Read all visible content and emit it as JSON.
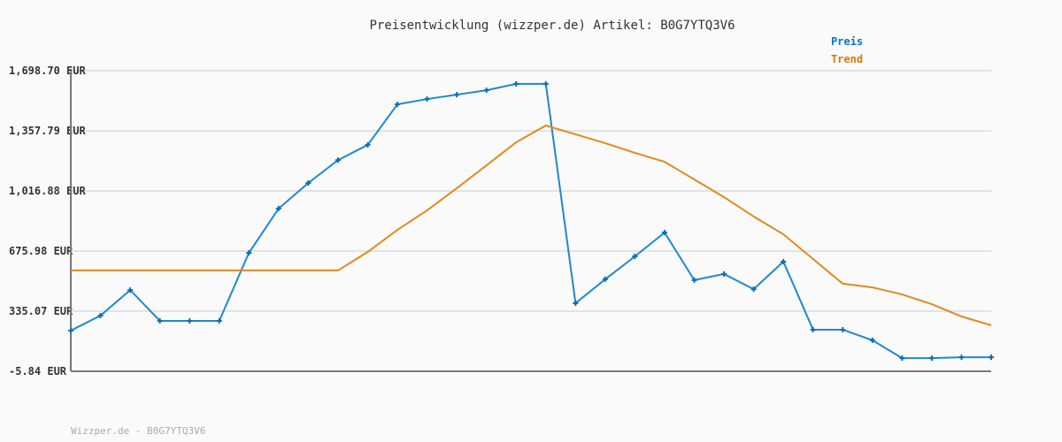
{
  "chart_data": {
    "type": "line",
    "title": "Preisentwicklung (wizzper.de) Artikel: B0G7YTQ3V6",
    "xlabel": "",
    "ylabel": "",
    "ylim": [
      -5.84,
      1698.7
    ],
    "yticks": [
      "-5.84 EUR",
      "335.07 EUR",
      "675.98 EUR",
      "1,016.88 EUR",
      "1,357.79 EUR",
      "1,698.70 EUR"
    ],
    "ytick_values": [
      -5.84,
      335.07,
      675.98,
      1016.88,
      1357.79,
      1698.7
    ],
    "grid": true,
    "legend_placement": "top-right",
    "series": [
      {
        "name": "Preis",
        "color": "#1f88d0",
        "markers": true,
        "values": [
          225,
          310,
          455,
          280,
          280,
          280,
          666,
          917,
          1062,
          1192,
          1278,
          1508,
          1538,
          1563,
          1588,
          1624,
          1624,
          380,
          516,
          646,
          781,
          511,
          546,
          460,
          616,
          230,
          230,
          170,
          69,
          69,
          74,
          74
        ]
      },
      {
        "name": "Trend",
        "color": "#e08a1e",
        "markers": false,
        "values": [
          566,
          566,
          566,
          566,
          566,
          566,
          566,
          566,
          566,
          566,
          671,
          796,
          907,
          1032,
          1162,
          1293,
          1388,
          1338,
          1288,
          1233,
          1182,
          1082,
          982,
          872,
          771,
          631,
          491,
          470,
          430,
          375,
          305,
          255
        ]
      }
    ]
  },
  "legend": {
    "preis": "Preis",
    "trend": "Trend",
    "preis_color": "#0077cc",
    "trend_color": "#dd7700"
  },
  "footer": "Wizzper.de - B0G7YTQ3V6"
}
